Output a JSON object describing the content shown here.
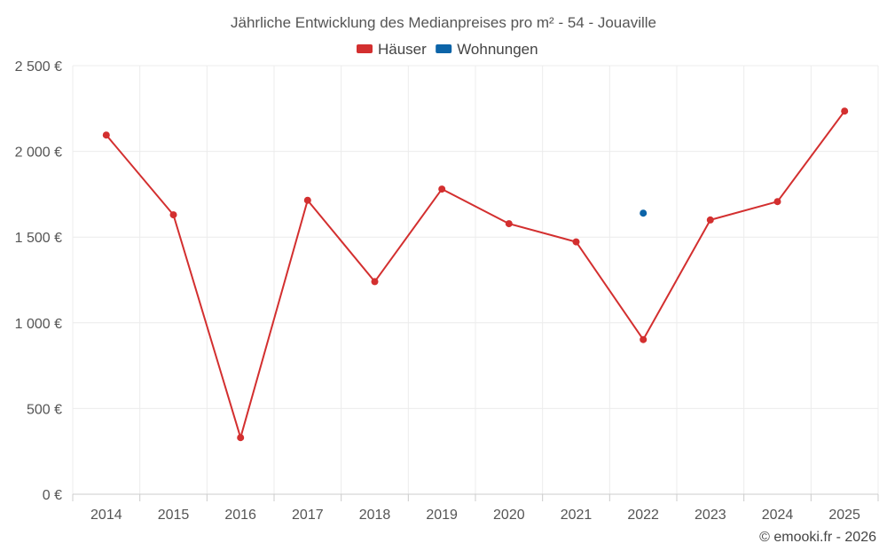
{
  "chart_data": {
    "type": "line",
    "title": "Jährliche Entwicklung des Medianpreises pro m² - 54 - Jouaville",
    "categories": [
      "2014",
      "2015",
      "2016",
      "2017",
      "2018",
      "2019",
      "2020",
      "2021",
      "2022",
      "2023",
      "2024",
      "2025"
    ],
    "series": [
      {
        "name": "Häuser",
        "color": "#d32f2f",
        "values": [
          2095,
          1630,
          330,
          1715,
          1240,
          1780,
          1578,
          1472,
          902,
          1600,
          1707,
          2235
        ]
      },
      {
        "name": "Wohnungen",
        "color": "#0c64a8",
        "values": [
          null,
          null,
          null,
          null,
          null,
          null,
          null,
          null,
          1640,
          null,
          null,
          null
        ]
      }
    ],
    "ylim": [
      0,
      2500
    ],
    "yticks": [
      0,
      500,
      1000,
      1500,
      2000,
      2500
    ],
    "ytick_labels": [
      "0 €",
      "500 €",
      "1 000 €",
      "1 500 €",
      "2 000 €",
      "2 500 €"
    ],
    "grid": true,
    "legend_position": "top-center",
    "credit": "© emooki.fr - 2026"
  }
}
